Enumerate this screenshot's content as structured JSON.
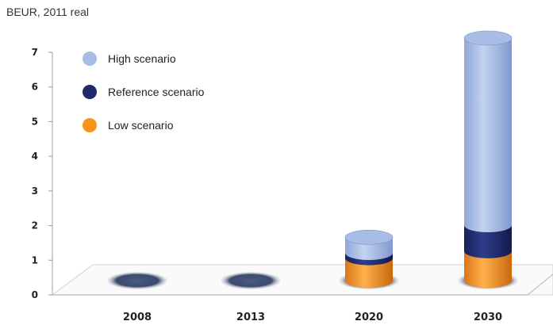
{
  "chart_data": {
    "type": "bar",
    "stacked": true,
    "ylabel": "BEUR, 2011 real",
    "ylim": [
      0,
      7
    ],
    "yticks": [
      0,
      1,
      2,
      3,
      4,
      5,
      6,
      7
    ],
    "categories": [
      "2008",
      "2013",
      "2020",
      "2030"
    ],
    "series": [
      {
        "name": "Low scenario",
        "color": "#f7941d",
        "values": [
          0,
          0,
          0.65,
          0.85
        ]
      },
      {
        "name": "Reference scenario",
        "color": "#1f2a6b",
        "values": [
          0,
          0,
          0.15,
          0.75
        ]
      },
      {
        "name": "High scenario",
        "color": "#a7bde6",
        "values": [
          0,
          0,
          0.45,
          5.4
        ]
      }
    ],
    "legend_order": [
      "High scenario",
      "Reference scenario",
      "Low scenario"
    ],
    "legend_position": "top-left",
    "style": "3d-cylinder"
  }
}
